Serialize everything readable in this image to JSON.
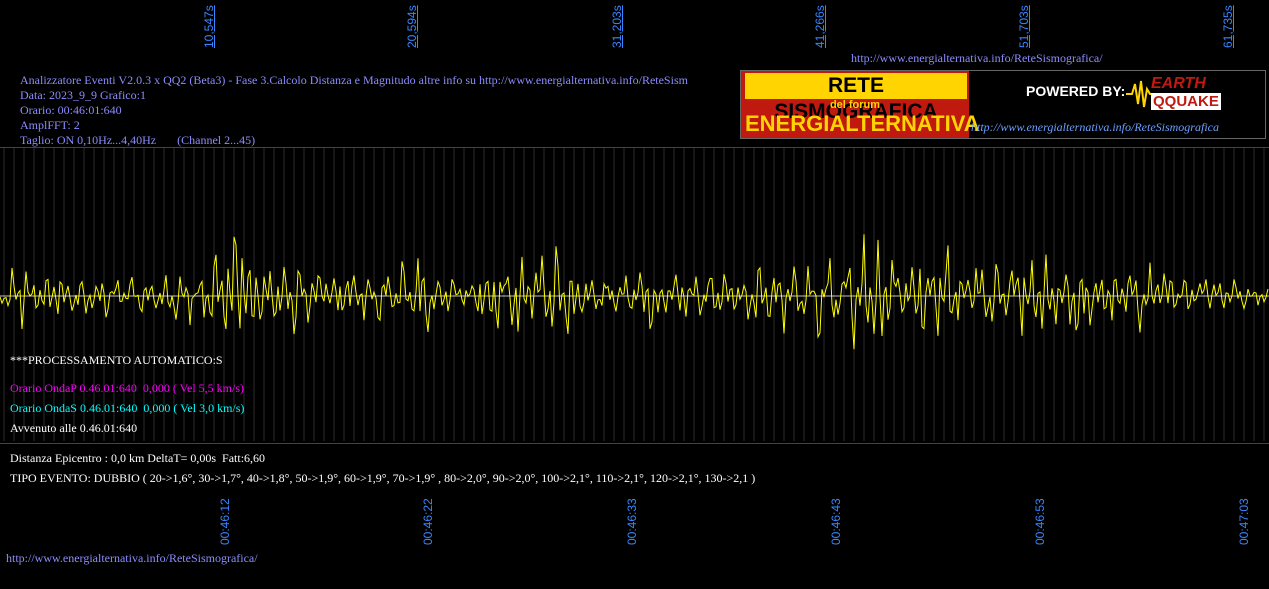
{
  "top_url": "http://www.energialternativa.info/ReteSismografica/",
  "bottom_url": "http://www.energialternativa.info/ReteSismografica/",
  "top_axis_ticks": [
    "10,547s",
    "20,594s",
    "31,203s",
    "41,266s",
    "51,703s",
    "61,735s"
  ],
  "bottom_axis_ticks": [
    "00:46:12",
    "00:46:22",
    "00:46:33",
    "00:46:43",
    "00:46:53",
    "00:47:03"
  ],
  "info": {
    "line1": "Analizzatore Eventi V2.0.3 x QQ2 (Beta3) - Fase 3.Calcolo Distanza e Magnitudo altre info su http://www.energialternativa.info/ReteSism",
    "line2": "Data: 2023_9_9 Grafico:1",
    "line3": "Orario: 00:46:01:640",
    "line4": "AmplFFT: 2",
    "line5": "Taglio: ON 0,10Hz...4,40Hz       (Channel 2...45)"
  },
  "logo": {
    "title": "RETE SISMOGRAFICA",
    "subtitle": "del forum",
    "brand": "ENERGIALTERNATIVA",
    "powered": "POWERED BY:",
    "earth": "EARTH",
    "quake": "QQUAKE",
    "url": "http://www.energialternativa.info/ReteSismografica"
  },
  "processing": {
    "title": "***PROCESSAMENTO AUTOMATICO:S",
    "onda_p": "Orario OndaP 0.46.01:640  0,000 ( Vel 5,5 km/s)",
    "onda_s": "Orario OndaS 0.46.01:640  0,000 ( Vel 3,0 km/s)",
    "avvenuto": "Avvenuto alle 0.46.01:640"
  },
  "result": {
    "distanza": "Distanza Epicentro : 0,0 km DeltaT= 0,00s  Fatt:6,60",
    "tipo": "TIPO EVENTO: DUBBIO ( 20->1,6°, 30->1,7°, 40->1,8°, 50->1,9°, 60->1,9°, 70->1,9° , 80->2,0°, 90->2,0°, 100->2,1°, 110->2,1°, 120->2,1°, 130->2,1 )"
  },
  "colors": {
    "background": "#000000",
    "trace": "#ffff00",
    "grid": "#3a3a3a",
    "axis_text": "#3a86ff",
    "info_text": "#8c8cff",
    "onda_p": "#ff00ff",
    "onda_s": "#00ffff",
    "baseline": "#ffffff"
  }
}
